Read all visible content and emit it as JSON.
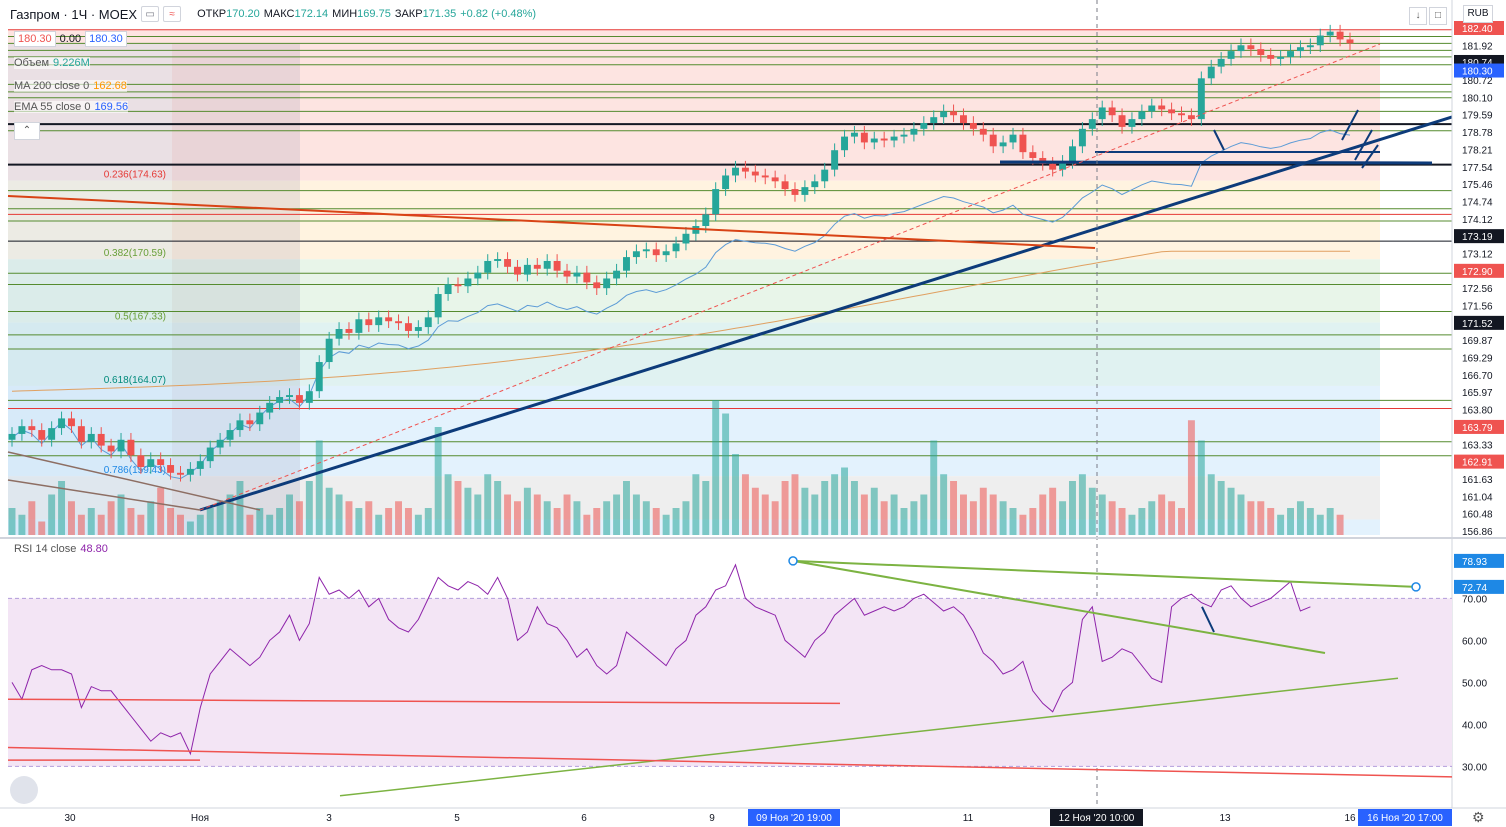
{
  "header": {
    "symbol": "Газпром · 1Ч · MOEX",
    "btn_a": "≈",
    "ohlc": [
      {
        "k": "ОТКР",
        "v": "170.20"
      },
      {
        "k": "МАКС",
        "v": "172.14"
      },
      {
        "k": "МИН",
        "v": "169.75"
      },
      {
        "k": "ЗАКР",
        "v": "171.35"
      },
      {
        "k": "",
        "v": "+0.82 (+0.48%)"
      }
    ],
    "sell_price": "180.30",
    "spread": "0.00",
    "buy_price": "180.30",
    "currency": "RUB",
    "down_btn": "↓",
    "square_btn": "□",
    "collapse_btn": "⌃"
  },
  "indicators": [
    {
      "name": "Объем",
      "value": "9.226M",
      "color": "#26a69a"
    },
    {
      "name": "MA 200 close 0",
      "value": "162.68",
      "color": "#ff9800"
    },
    {
      "name": "EMA 55 close 0",
      "value": "169.56",
      "color": "#2962ff"
    }
  ],
  "rsi": {
    "name": "RSI 14 close",
    "value": "48.80"
  },
  "chart_data": {
    "type": "candlestick",
    "title": "Газпром · 1Ч · MOEX",
    "price_axis": {
      "ticks": [
        "182.40",
        "181.92",
        "181.34",
        "180.72",
        "180.10",
        "179.59",
        "178.78",
        "178.21",
        "177.54",
        "175.46",
        "174.74",
        "174.12",
        "173.19",
        "173.12",
        "172.90",
        "172.56",
        "171.56",
        "171.52",
        "169.87",
        "169.29",
        "166.70",
        "165.97",
        "163.80",
        "163.79",
        "163.33",
        "162.91",
        "161.63",
        "161.04",
        "160.48",
        "156.86"
      ],
      "badges": [
        {
          "label": "182.40",
          "price": 182.4,
          "color": "#ef5350"
        },
        {
          "label": "180.74",
          "price": 180.74,
          "color": "#131722"
        },
        {
          "label": "180.30",
          "price": 180.3,
          "color": "#2962ff"
        },
        {
          "label": "173.19",
          "price": 173.19,
          "color": "#131722"
        },
        {
          "label": "172.90",
          "price": 172.9,
          "color": "#ef5350"
        },
        {
          "label": "171.52",
          "price": 171.52,
          "color": "#131722"
        },
        {
          "label": "163.79",
          "price": 163.79,
          "color": "#ef5350"
        },
        {
          "label": "162.91",
          "price": 162.91,
          "color": "#ef5350"
        }
      ]
    },
    "fib_levels": [
      {
        "label": "0.236(174.63)",
        "ratio": 0.236,
        "price": 174.63
      },
      {
        "label": "0.382(170.59)",
        "ratio": 0.382,
        "price": 170.59
      },
      {
        "label": "0.5(167.33)",
        "ratio": 0.5,
        "price": 167.33
      },
      {
        "label": "0.618(164.07)",
        "ratio": 0.618,
        "price": 164.07
      },
      {
        "label": "0.786(159.43)",
        "ratio": 0.786,
        "price": 159.43
      }
    ],
    "x_axis": {
      "ticks": [
        "30",
        "Ноя",
        "3",
        "5",
        "6",
        "9",
        "11",
        "13",
        "16"
      ],
      "highlights": [
        "09 Ноя '20 19:00",
        "12 Ноя '20 10:00",
        "16 Ноя '20 17:00"
      ]
    },
    "rsi_axis": {
      "ticks": [
        "70.00",
        "60.00",
        "50.00",
        "40.00",
        "30.00"
      ],
      "badges": [
        "78.93",
        "72.74"
      ]
    },
    "candles_close": [
      161.6,
      162.0,
      161.8,
      161.3,
      161.9,
      162.4,
      162.0,
      161.2,
      161.6,
      161.0,
      160.7,
      161.3,
      160.5,
      159.9,
      160.3,
      160.0,
      159.6,
      159.5,
      159.8,
      160.2,
      160.9,
      161.3,
      161.8,
      162.3,
      162.1,
      162.7,
      163.2,
      163.5,
      163.6,
      163.2,
      163.8,
      165.3,
      166.5,
      167.0,
      166.8,
      167.5,
      167.2,
      167.6,
      167.4,
      167.3,
      166.9,
      167.1,
      167.6,
      168.8,
      169.3,
      169.2,
      169.6,
      169.9,
      170.5,
      170.6,
      170.2,
      169.8,
      170.3,
      170.1,
      170.5,
      170.0,
      169.7,
      169.9,
      169.4,
      169.1,
      169.6,
      170.0,
      170.7,
      171.0,
      171.1,
      170.8,
      171.0,
      171.4,
      171.9,
      172.3,
      172.9,
      174.2,
      174.9,
      175.3,
      175.1,
      174.9,
      174.8,
      174.6,
      174.2,
      173.9,
      174.3,
      174.6,
      175.2,
      176.2,
      176.9,
      177.1,
      176.6,
      176.8,
      176.7,
      176.9,
      177.0,
      177.3,
      177.6,
      177.9,
      178.2,
      178.0,
      177.6,
      177.3,
      177.0,
      176.4,
      176.6,
      177.0,
      176.1,
      175.8,
      175.5,
      175.2,
      175.6,
      176.4,
      177.3,
      177.8,
      178.4,
      178.0,
      177.4,
      177.8,
      178.2,
      178.5,
      178.3,
      178.1,
      178.0,
      177.8,
      179.9,
      180.5,
      180.9,
      181.3,
      181.6,
      181.4,
      181.1,
      180.9,
      181.0,
      181.3,
      181.5,
      181.6,
      182.1,
      182.3,
      181.9,
      181.7
    ],
    "volume": [
      4,
      3,
      5,
      2,
      6,
      8,
      5,
      3,
      4,
      3,
      5,
      6,
      4,
      3,
      5,
      7,
      4,
      3,
      2,
      3,
      4,
      5,
      6,
      8,
      3,
      4,
      3,
      4,
      6,
      5,
      8,
      14,
      7,
      6,
      5,
      4,
      5,
      3,
      4,
      5,
      4,
      3,
      4,
      16,
      9,
      8,
      7,
      6,
      9,
      8,
      6,
      5,
      7,
      6,
      5,
      4,
      6,
      5,
      3,
      4,
      5,
      6,
      8,
      6,
      5,
      4,
      3,
      4,
      5,
      9,
      8,
      20,
      18,
      12,
      9,
      7,
      6,
      5,
      8,
      9,
      7,
      6,
      8,
      9,
      10,
      8,
      6,
      7,
      5,
      6,
      4,
      5,
      6,
      14,
      9,
      8,
      6,
      5,
      7,
      6,
      5,
      4,
      3,
      4,
      6,
      7,
      5,
      8,
      9,
      7,
      6,
      5,
      4,
      3,
      4,
      5,
      6,
      5,
      4,
      17,
      14,
      9,
      8,
      7,
      6,
      5,
      5,
      4,
      3,
      4,
      5,
      4,
      3,
      4,
      3
    ],
    "rsi_values": [
      50,
      46,
      53,
      54,
      53,
      53,
      52,
      44,
      49,
      48,
      48,
      45,
      42,
      39,
      36,
      38,
      37,
      38,
      33,
      44,
      52,
      55,
      58,
      56,
      54,
      56,
      60,
      62,
      66,
      60,
      64,
      75,
      71,
      72,
      70,
      72,
      68,
      70,
      65,
      63,
      62,
      65,
      70,
      75,
      73,
      72,
      74,
      73,
      71,
      75,
      70,
      60,
      62,
      68,
      64,
      63,
      60,
      56,
      58,
      54,
      52,
      54,
      62,
      60,
      58,
      56,
      54,
      58,
      60,
      66,
      68,
      72,
      73,
      78,
      70,
      68,
      67,
      66,
      60,
      58,
      56,
      60,
      62,
      66,
      68,
      70,
      66,
      67,
      68,
      67,
      68,
      70,
      71,
      69,
      67,
      68,
      66,
      62,
      57,
      55,
      52,
      53,
      55,
      48,
      45,
      43,
      48,
      50,
      65,
      68,
      55,
      56,
      58,
      57,
      54,
      51,
      50,
      68,
      70,
      71,
      69,
      68,
      72,
      73,
      70,
      68,
      69,
      70,
      72,
      74,
      67,
      68
    ]
  }
}
